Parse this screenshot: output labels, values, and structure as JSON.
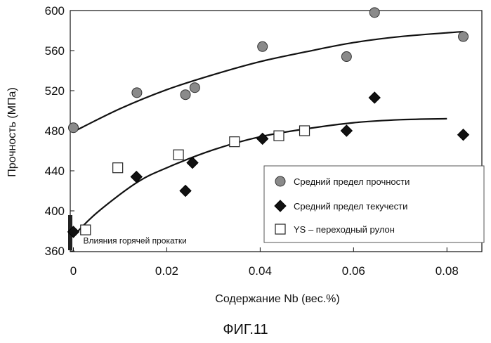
{
  "caption": "ФИГ.11",
  "chart_data": {
    "type": "scatter",
    "title": "",
    "xlabel": "Содержание Nb (вес.%)",
    "ylabel": "Прочность (МПа)",
    "xlim": [
      0,
      0.085
    ],
    "ylim": [
      360,
      600
    ],
    "xticks": [
      0,
      0.02,
      0.04,
      0.06,
      0.08
    ],
    "xtick_labels": [
      "0",
      "0.02",
      "0.04",
      "0.06",
      "0.08"
    ],
    "yticks": [
      360,
      400,
      440,
      480,
      520,
      560,
      600
    ],
    "ytick_labels": [
      "360",
      "400",
      "440",
      "480",
      "520",
      "560",
      "600"
    ],
    "grid": false,
    "legend_position": "lower-right",
    "series": [
      {
        "name": "Средний предел прочности",
        "marker": "circle",
        "color": "#8a8a8a",
        "points": [
          [
            0,
            483
          ],
          [
            0.0136,
            518
          ],
          [
            0.024,
            516
          ],
          [
            0.026,
            523
          ],
          [
            0.0405,
            564
          ],
          [
            0.0585,
            554
          ],
          [
            0.0645,
            598
          ],
          [
            0.0835,
            574
          ]
        ]
      },
      {
        "name": "Средний предел текучести",
        "marker": "diamond",
        "color": "#111111",
        "points": [
          [
            0,
            379
          ],
          [
            0.0135,
            434
          ],
          [
            0.024,
            420
          ],
          [
            0.0255,
            448
          ],
          [
            0.0405,
            472
          ],
          [
            0.0585,
            480
          ],
          [
            0.0645,
            513
          ],
          [
            0.0835,
            476
          ]
        ]
      },
      {
        "name": "YS – переходный рулон",
        "marker": "square",
        "color": "#ffffff",
        "points": [
          [
            0.0026,
            381
          ],
          [
            0.0095,
            443
          ],
          [
            0.0225,
            456
          ],
          [
            0.0345,
            469
          ],
          [
            0.044,
            475
          ],
          [
            0.0495,
            480
          ]
        ]
      }
    ],
    "trend_lines": [
      {
        "points": [
          [
            0,
            479
          ],
          [
            0.01,
            502
          ],
          [
            0.02,
            521
          ],
          [
            0.03,
            536
          ],
          [
            0.04,
            549
          ],
          [
            0.05,
            559
          ],
          [
            0.06,
            568
          ],
          [
            0.07,
            574
          ],
          [
            0.0835,
            579
          ]
        ]
      },
      {
        "points": [
          [
            0,
            375
          ],
          [
            0.005,
            398
          ],
          [
            0.0135,
            428
          ],
          [
            0.02,
            443
          ],
          [
            0.03,
            461
          ],
          [
            0.04,
            474
          ],
          [
            0.05,
            482
          ],
          [
            0.06,
            488
          ],
          [
            0.07,
            491
          ],
          [
            0.08,
            492
          ]
        ]
      }
    ],
    "annotation": {
      "text": "Влияния горячей прокатки",
      "x": 0.0012,
      "y": 366
    }
  }
}
